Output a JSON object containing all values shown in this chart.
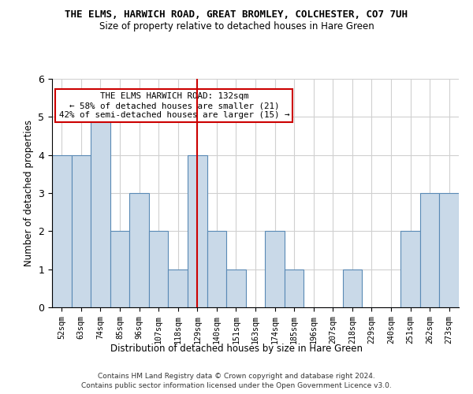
{
  "title": "THE ELMS, HARWICH ROAD, GREAT BROMLEY, COLCHESTER, CO7 7UH",
  "subtitle": "Size of property relative to detached houses in Hare Green",
  "xlabel": "Distribution of detached houses by size in Hare Green",
  "ylabel": "Number of detached properties",
  "categories": [
    "52sqm",
    "63sqm",
    "74sqm",
    "85sqm",
    "96sqm",
    "107sqm",
    "118sqm",
    "129sqm",
    "140sqm",
    "151sqm",
    "163sqm",
    "174sqm",
    "185sqm",
    "196sqm",
    "207sqm",
    "218sqm",
    "229sqm",
    "240sqm",
    "251sqm",
    "262sqm",
    "273sqm"
  ],
  "values": [
    4,
    4,
    5,
    2,
    3,
    2,
    1,
    4,
    2,
    1,
    0,
    2,
    1,
    0,
    0,
    1,
    0,
    0,
    2,
    3,
    3
  ],
  "bar_color": "#c9d9e8",
  "bar_edge_color": "#5a8ab5",
  "highlight_index": 7,
  "highlight_line_color": "#cc0000",
  "annotation_text": "THE ELMS HARWICH ROAD: 132sqm\n← 58% of detached houses are smaller (21)\n42% of semi-detached houses are larger (15) →",
  "annotation_box_color": "#ffffff",
  "annotation_box_edge": "#cc0000",
  "footer_line1": "Contains HM Land Registry data © Crown copyright and database right 2024.",
  "footer_line2": "Contains public sector information licensed under the Open Government Licence v3.0.",
  "ylim": [
    0,
    6
  ],
  "yticks": [
    0,
    1,
    2,
    3,
    4,
    5,
    6
  ],
  "background_color": "#ffffff",
  "grid_color": "#d0d0d0",
  "title_fontsize": 9,
  "subtitle_fontsize": 8.5
}
